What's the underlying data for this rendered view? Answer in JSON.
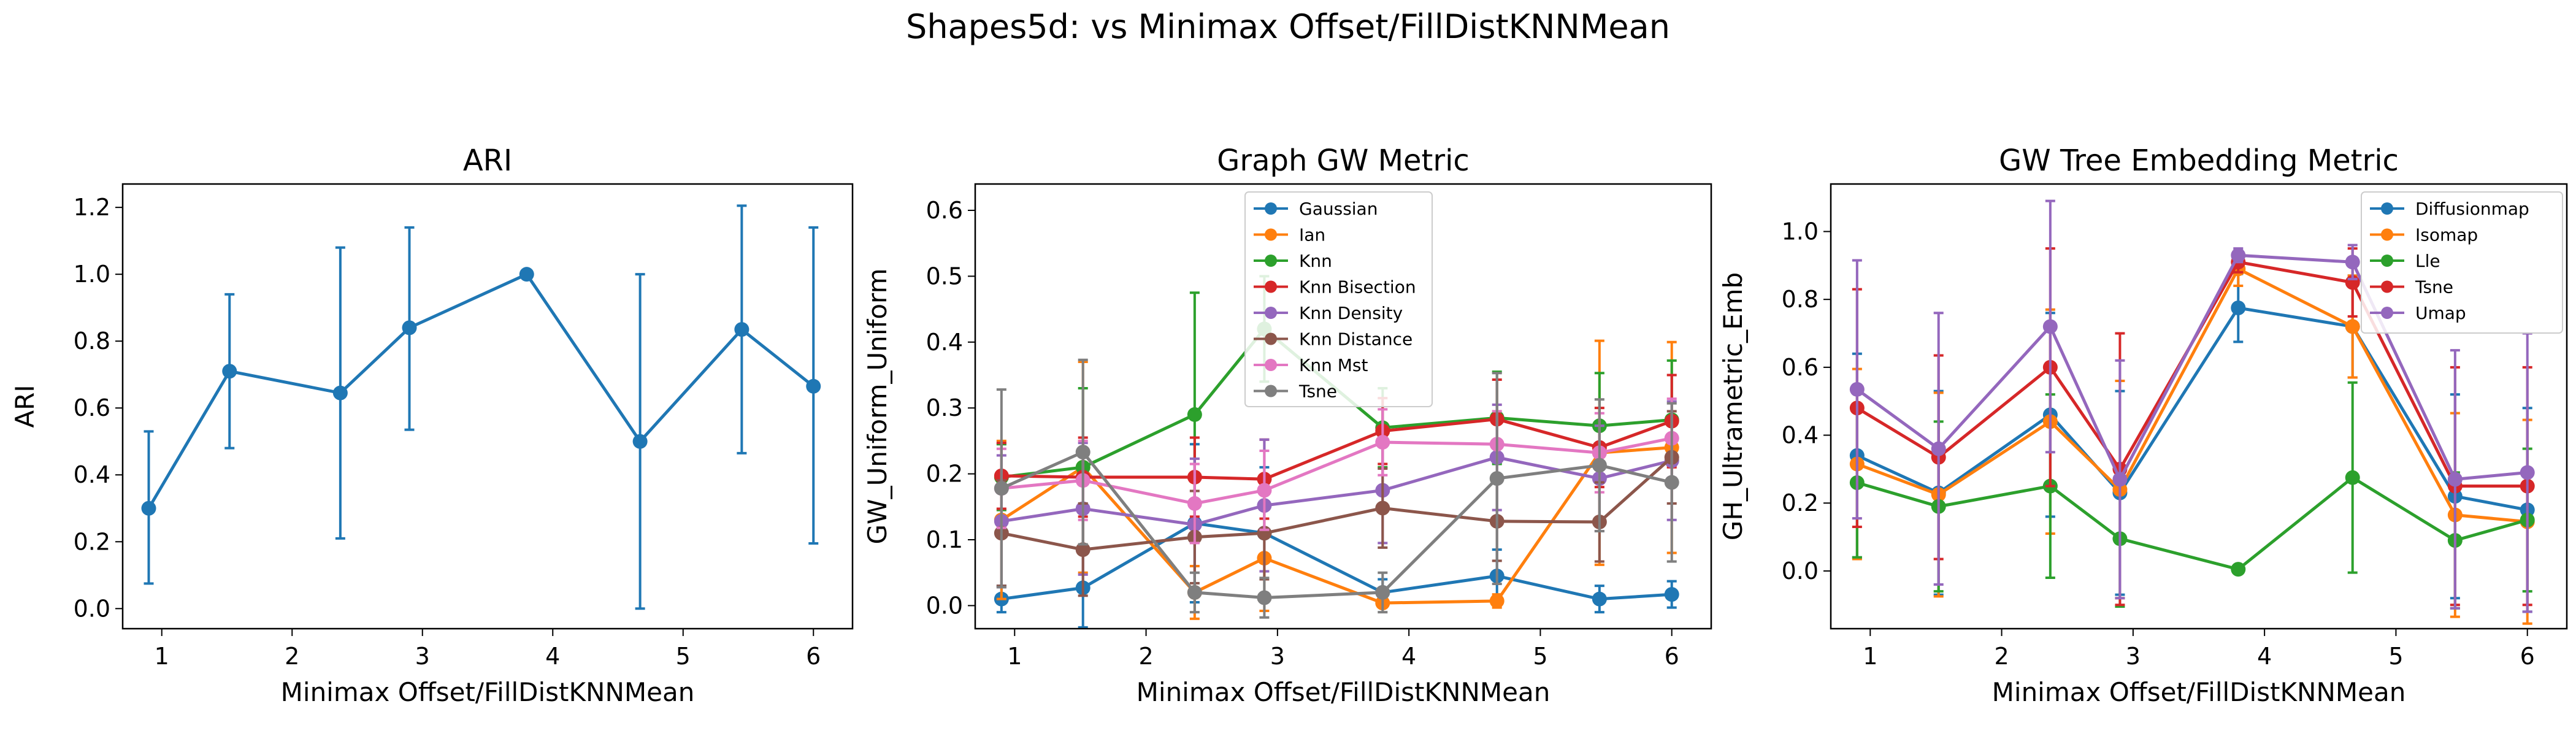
{
  "figure_title": "Shapes5d: vs Minimax Offset/FillDistKNNMean",
  "chart_data": [
    {
      "type": "line",
      "title": "ARI",
      "xlabel": "Minimax Offset/FillDistKNNMean",
      "ylabel": "ARI",
      "xlim": [
        0.7,
        6.3
      ],
      "ylim": [
        -0.06,
        1.27
      ],
      "xticks": [
        1,
        2,
        3,
        4,
        5,
        6
      ],
      "yticks": [
        0.0,
        0.2,
        0.4,
        0.6,
        0.8,
        1.0,
        1.2
      ],
      "yticklabels": [
        "0.0",
        "0.2",
        "0.4",
        "0.6",
        "0.8",
        "1.0",
        "1.2"
      ],
      "grid": false,
      "x": [
        0.9,
        1.52,
        2.37,
        2.9,
        3.8,
        4.67,
        5.45,
        6.0
      ],
      "series": [
        {
          "color": "#1f77b4",
          "values": [
            0.3,
            0.71,
            0.645,
            0.84,
            1.0,
            0.5,
            0.835,
            0.665
          ],
          "err_lo": [
            0.075,
            0.48,
            0.21,
            0.535,
            1.0,
            0.0,
            0.465,
            0.195
          ],
          "err_hi": [
            0.53,
            0.94,
            1.08,
            1.14,
            1.0,
            1.0,
            1.205,
            1.14
          ]
        }
      ]
    },
    {
      "type": "line",
      "title": "Graph GW Metric",
      "xlabel": "Minimax Offset/FillDistKNNMean",
      "ylabel": "GW_Uniform_Uniform",
      "xlim": [
        0.7,
        6.3
      ],
      "ylim": [
        -0.035,
        0.64
      ],
      "xticks": [
        1,
        2,
        3,
        4,
        5,
        6
      ],
      "yticks": [
        0.0,
        0.1,
        0.2,
        0.3,
        0.4,
        0.5,
        0.6
      ],
      "yticklabels": [
        "0.0",
        "0.1",
        "0.2",
        "0.3",
        "0.4",
        "0.5",
        "0.6"
      ],
      "grid": false,
      "legend": "top-center",
      "x": [
        0.9,
        1.52,
        2.37,
        2.9,
        3.8,
        4.67,
        5.45,
        6.0
      ],
      "series": [
        {
          "name": "Gaussian",
          "color": "#1f77b4",
          "values": [
            0.01,
            0.027,
            0.125,
            0.11,
            0.02,
            0.045,
            0.01,
            0.017
          ],
          "err": [
            0.02,
            0.06,
            0.12,
            0.1,
            0.02,
            0.04,
            0.02,
            0.02
          ]
        },
        {
          "name": "Ian",
          "color": "#ff7f0e",
          "values": [
            0.13,
            0.21,
            0.02,
            0.072,
            0.004,
            0.007,
            0.232,
            0.24
          ],
          "err": [
            0.12,
            0.16,
            0.04,
            0.08,
            0.005,
            0.01,
            0.17,
            0.16
          ]
        },
        {
          "name": "Knn",
          "color": "#2ca02c",
          "values": [
            0.195,
            0.21,
            0.29,
            0.42,
            0.27,
            0.285,
            0.273,
            0.282
          ],
          "err": [
            0.05,
            0.12,
            0.185,
            0.08,
            0.06,
            0.07,
            0.08,
            0.09
          ]
        },
        {
          "name": "Knn Bisection",
          "color": "#d62728",
          "values": [
            0.197,
            0.195,
            0.195,
            0.192,
            0.265,
            0.283,
            0.24,
            0.28
          ],
          "err": [
            0.05,
            0.06,
            0.06,
            0.06,
            0.05,
            0.06,
            0.06,
            0.07
          ]
        },
        {
          "name": "Knn Density",
          "color": "#9467bd",
          "values": [
            0.128,
            0.147,
            0.123,
            0.152,
            0.175,
            0.225,
            0.193,
            0.22
          ],
          "err": [
            0.1,
            0.1,
            0.1,
            0.1,
            0.08,
            0.08,
            0.08,
            0.09
          ]
        },
        {
          "name": "Knn Distance",
          "color": "#8c564b",
          "values": [
            0.11,
            0.085,
            0.104,
            0.11,
            0.148,
            0.128,
            0.127,
            0.225
          ],
          "err": [
            0.08,
            0.07,
            0.07,
            0.07,
            0.06,
            0.06,
            0.06,
            0.07
          ]
        },
        {
          "name": "Knn Mst",
          "color": "#e377c2",
          "values": [
            0.178,
            0.19,
            0.155,
            0.175,
            0.248,
            0.245,
            0.232,
            0.254
          ],
          "err": [
            0.06,
            0.06,
            0.06,
            0.06,
            0.05,
            0.05,
            0.06,
            0.06
          ]
        },
        {
          "name": "Tsne",
          "color": "#7f7f7f",
          "values": [
            0.178,
            0.233,
            0.02,
            0.012,
            0.02,
            0.193,
            0.213,
            0.187
          ],
          "err": [
            0.15,
            0.14,
            0.03,
            0.03,
            0.03,
            0.16,
            0.1,
            0.12
          ]
        }
      ]
    },
    {
      "type": "line",
      "title": "GW Tree Embedding Metric",
      "xlabel": "Minimax Offset/FillDistKNNMean",
      "ylabel": "GH_Ultrametric_Emb",
      "xlim": [
        0.7,
        6.3
      ],
      "ylim": [
        -0.17,
        1.14
      ],
      "xticks": [
        1,
        2,
        3,
        4,
        5,
        6
      ],
      "yticks": [
        0.0,
        0.2,
        0.4,
        0.6,
        0.8,
        1.0
      ],
      "yticklabels": [
        "0.0",
        "0.2",
        "0.4",
        "0.6",
        "0.8",
        "1.0"
      ],
      "grid": false,
      "legend": "top-right",
      "x": [
        0.9,
        1.52,
        2.37,
        2.9,
        3.8,
        4.67,
        5.45,
        6.0
      ],
      "series": [
        {
          "name": "Diffusionmap",
          "color": "#1f77b4",
          "values": [
            0.34,
            0.23,
            0.46,
            0.23,
            0.775,
            0.72,
            0.22,
            0.18
          ],
          "err": [
            0.3,
            0.3,
            0.3,
            0.3,
            0.1,
            0.15,
            0.3,
            0.3
          ]
        },
        {
          "name": "Isomap",
          "color": "#ff7f0e",
          "values": [
            0.315,
            0.225,
            0.44,
            0.24,
            0.89,
            0.72,
            0.165,
            0.145
          ],
          "err": [
            0.28,
            0.3,
            0.33,
            0.32,
            0.05,
            0.15,
            0.3,
            0.3
          ]
        },
        {
          "name": "Lle",
          "color": "#2ca02c",
          "values": [
            0.26,
            0.19,
            0.25,
            0.095,
            0.005,
            0.275,
            0.09,
            0.15
          ],
          "err": [
            0.22,
            0.25,
            0.27,
            0.2,
            0.005,
            0.28,
            0.2,
            0.21
          ]
        },
        {
          "name": "Tsne",
          "color": "#d62728",
          "values": [
            0.48,
            0.335,
            0.6,
            0.3,
            0.91,
            0.85,
            0.25,
            0.25
          ],
          "err": [
            0.35,
            0.3,
            0.35,
            0.4,
            0.03,
            0.1,
            0.35,
            0.35
          ]
        },
        {
          "name": "Umap",
          "color": "#9467bd",
          "values": [
            0.535,
            0.36,
            0.72,
            0.27,
            0.93,
            0.91,
            0.27,
            0.29
          ],
          "err": [
            0.38,
            0.4,
            0.37,
            0.35,
            0.02,
            0.05,
            0.38,
            0.41
          ]
        }
      ]
    }
  ]
}
